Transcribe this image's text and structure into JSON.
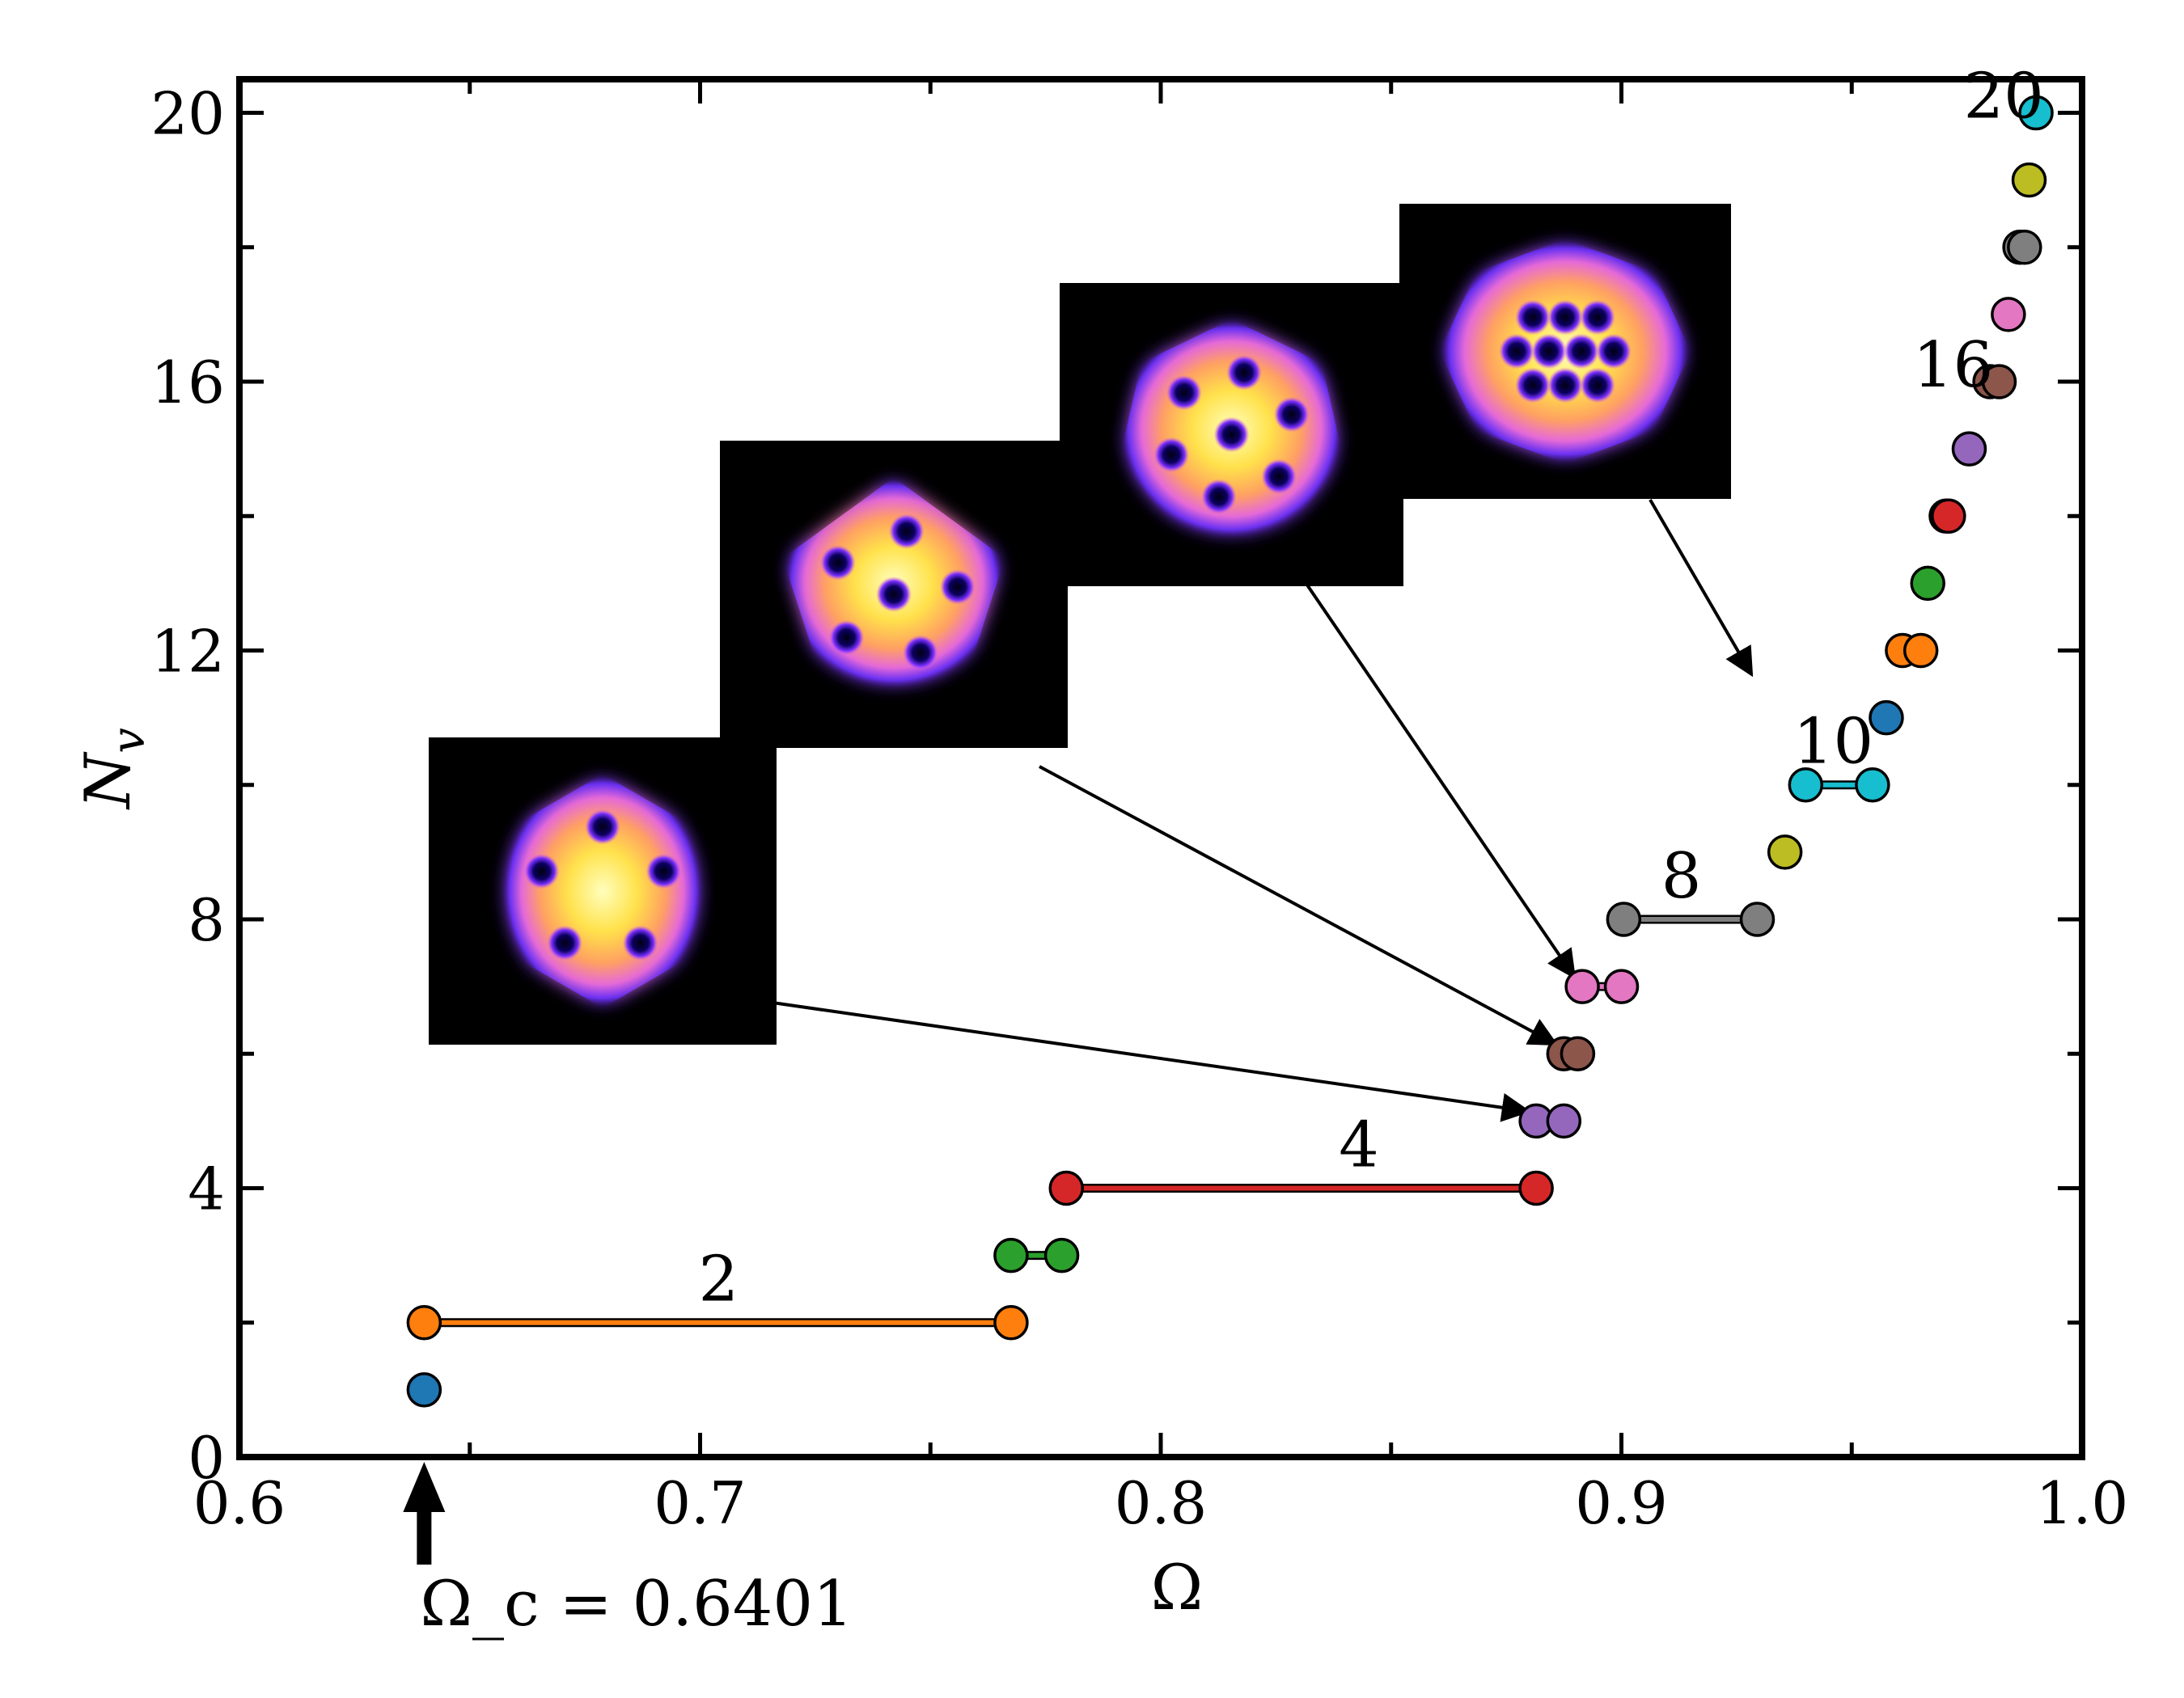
{
  "chart_data": {
    "type": "scatter",
    "title": "",
    "xlabel": "Ω",
    "ylabel": "N_v",
    "xlim": [
      0.6,
      1.0
    ],
    "ylim": [
      0,
      20.5
    ],
    "xticks": [
      0.6,
      0.7,
      0.8,
      0.9,
      1.0
    ],
    "xtick_labels": [
      "0.6",
      "0.7",
      "0.8",
      "0.9",
      "1.0"
    ],
    "yticks": [
      0,
      4,
      8,
      12,
      16,
      20
    ],
    "ytick_labels": [
      "0",
      "4",
      "8",
      "12",
      "16",
      "20"
    ],
    "grid": false,
    "series": [
      {
        "nv": 1,
        "omega": [
          0.6401
        ],
        "color": "#1f77b4"
      },
      {
        "nv": 2,
        "omega": [
          0.6401,
          0.7675
        ],
        "color": "#ff7f0e"
      },
      {
        "nv": 3,
        "omega": [
          0.7675,
          0.7785
        ],
        "color": "#2ca02c"
      },
      {
        "nv": 4,
        "omega": [
          0.7795,
          0.8815
        ],
        "color": "#d62728"
      },
      {
        "nv": 5,
        "omega": [
          0.8815,
          0.8875
        ],
        "color": "#9467bd"
      },
      {
        "nv": 6,
        "omega": [
          0.8875,
          0.8905
        ],
        "color": "#8c564b"
      },
      {
        "nv": 7,
        "omega": [
          0.8915,
          0.9
        ],
        "color": "#e377c2"
      },
      {
        "nv": 8,
        "omega": [
          0.9005,
          0.9295
        ],
        "color": "#7f7f7f"
      },
      {
        "nv": 9,
        "omega": [
          0.9355
        ],
        "color": "#bcbd22"
      },
      {
        "nv": 10,
        "omega": [
          0.94,
          0.9545
        ],
        "color": "#17becf"
      },
      {
        "nv": 11,
        "omega": [
          0.9575
        ],
        "color": "#1f77b4"
      },
      {
        "nv": 12,
        "omega": [
          0.961,
          0.965
        ],
        "color": "#ff7f0e"
      },
      {
        "nv": 13,
        "omega": [
          0.9665
        ],
        "color": "#2ca02c"
      },
      {
        "nv": 14,
        "omega": [
          0.9705,
          0.971
        ],
        "color": "#d62728"
      },
      {
        "nv": 15,
        "omega": [
          0.9755
        ],
        "color": "#9467bd"
      },
      {
        "nv": 16,
        "omega": [
          0.98,
          0.982
        ],
        "color": "#8c564b"
      },
      {
        "nv": 17,
        "omega": [
          0.984
        ],
        "color": "#e377c2"
      },
      {
        "nv": 18,
        "omega": [
          0.9865,
          0.9875
        ],
        "color": "#7f7f7f"
      },
      {
        "nv": 19,
        "omega": [
          0.9885
        ],
        "color": "#bcbd22"
      },
      {
        "nv": 20,
        "omega": [
          0.99
        ],
        "color": "#17becf"
      }
    ],
    "plateau_labels": [
      {
        "text": "2",
        "omega": 0.704,
        "nv": 2.4
      },
      {
        "text": "4",
        "omega": 0.843,
        "nv": 4.4
      },
      {
        "text": "8",
        "omega": 0.913,
        "nv": 8.4
      },
      {
        "text": "10",
        "omega": 0.946,
        "nv": 10.4
      },
      {
        "text": "16",
        "omega": 0.972,
        "nv": 16.0
      },
      {
        "text": "20",
        "omega": 0.983,
        "nv": 20.0
      }
    ],
    "critical_marker": {
      "label": "Ω_c = 0.6401",
      "omega": 0.6401
    },
    "insets": [
      {
        "name": "inset-nv5",
        "vortices": 5,
        "target_omega": 0.8815,
        "target_nv": 5,
        "shape": "hexagon"
      },
      {
        "name": "inset-nv6",
        "vortices": 6,
        "target_omega": 0.8875,
        "target_nv": 6,
        "shape": "pentagon"
      },
      {
        "name": "inset-nv7",
        "vortices": 7,
        "target_omega": 0.8915,
        "target_nv": 7,
        "shape": "heptagon"
      },
      {
        "name": "inset-nv10",
        "vortices": 10,
        "target_omega": 0.93,
        "target_nv": 11.5,
        "shape": "octagon"
      }
    ]
  }
}
